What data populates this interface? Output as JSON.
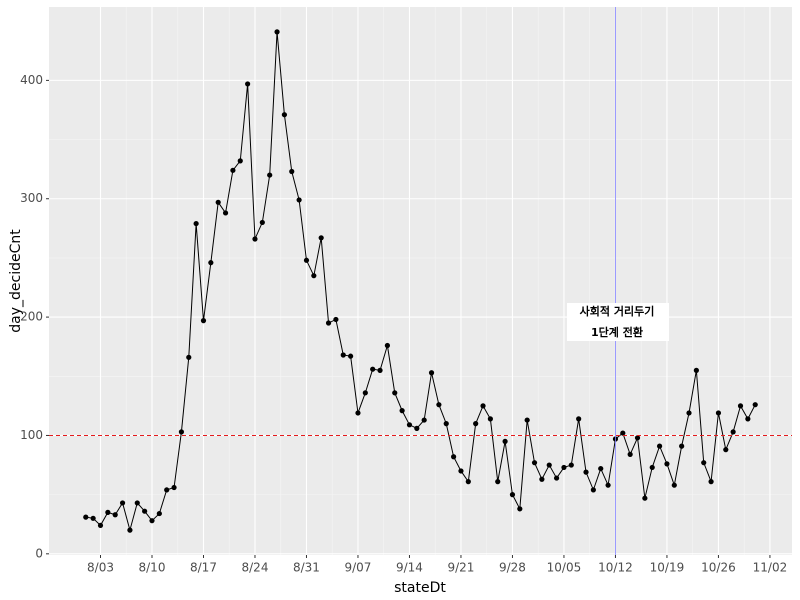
{
  "chart_data": {
    "type": "line",
    "x": [
      "8/01",
      "8/02",
      "8/03",
      "8/04",
      "8/05",
      "8/06",
      "8/07",
      "8/08",
      "8/09",
      "8/10",
      "8/11",
      "8/12",
      "8/13",
      "8/14",
      "8/15",
      "8/16",
      "8/17",
      "8/18",
      "8/19",
      "8/20",
      "8/21",
      "8/22",
      "8/23",
      "8/24",
      "8/25",
      "8/26",
      "8/27",
      "8/28",
      "8/29",
      "8/30",
      "8/31",
      "9/01",
      "9/02",
      "9/03",
      "9/04",
      "9/05",
      "9/06",
      "9/07",
      "9/08",
      "9/09",
      "9/10",
      "9/11",
      "9/12",
      "9/13",
      "9/14",
      "9/15",
      "9/16",
      "9/17",
      "9/18",
      "9/19",
      "9/20",
      "9/21",
      "9/22",
      "9/23",
      "9/24",
      "9/25",
      "9/26",
      "9/27",
      "9/28",
      "9/29",
      "9/30",
      "10/01",
      "10/02",
      "10/03",
      "10/04",
      "10/05",
      "10/06",
      "10/07",
      "10/08",
      "10/09",
      "10/10",
      "10/11",
      "10/12",
      "10/13",
      "10/14",
      "10/15",
      "10/16",
      "10/17",
      "10/18",
      "10/19",
      "10/20",
      "10/21",
      "10/22",
      "10/23",
      "10/24",
      "10/25",
      "10/26",
      "10/27",
      "10/28",
      "10/29",
      "10/30",
      "10/31"
    ],
    "series": [
      {
        "color": "#000000",
        "values": [
          31,
          30,
          24,
          35,
          33,
          43,
          20,
          43,
          36,
          28,
          34,
          54,
          56,
          103,
          166,
          279,
          197,
          246,
          297,
          288,
          324,
          332,
          397,
          266,
          280,
          320,
          441,
          371,
          323,
          299,
          248,
          235,
          267,
          195,
          198,
          168,
          167,
          119,
          136,
          156,
          155,
          176,
          136,
          121,
          109,
          106,
          113,
          153,
          126,
          110,
          82,
          70,
          61,
          110,
          125,
          114,
          61,
          95,
          50,
          38,
          113,
          77,
          63,
          75,
          64,
          73,
          75,
          114,
          69,
          54,
          72,
          58,
          97,
          102,
          84,
          98,
          47,
          73,
          91,
          76,
          58,
          91,
          119,
          155,
          77,
          61,
          119,
          88,
          103,
          125,
          114,
          126
        ]
      }
    ],
    "xlabel": "stateDt",
    "ylabel": "day_decideCnt",
    "xlim": [
      "7/27",
      "11/05"
    ],
    "xticks": [
      "8/03",
      "8/10",
      "8/17",
      "8/24",
      "8/31",
      "9/07",
      "9/14",
      "9/21",
      "9/28",
      "10/05",
      "10/12",
      "10/19",
      "10/26",
      "11/02"
    ],
    "ylim": [
      -1,
      462
    ],
    "yticks": [
      0,
      100,
      200,
      300,
      400
    ],
    "hline": {
      "value": 100,
      "color": "#e41a1c"
    },
    "vline": {
      "value": "10/12",
      "color": "#8080ff"
    },
    "annotation": [
      "사회적 거리두기",
      "1단계 전환"
    ],
    "grid": true
  }
}
